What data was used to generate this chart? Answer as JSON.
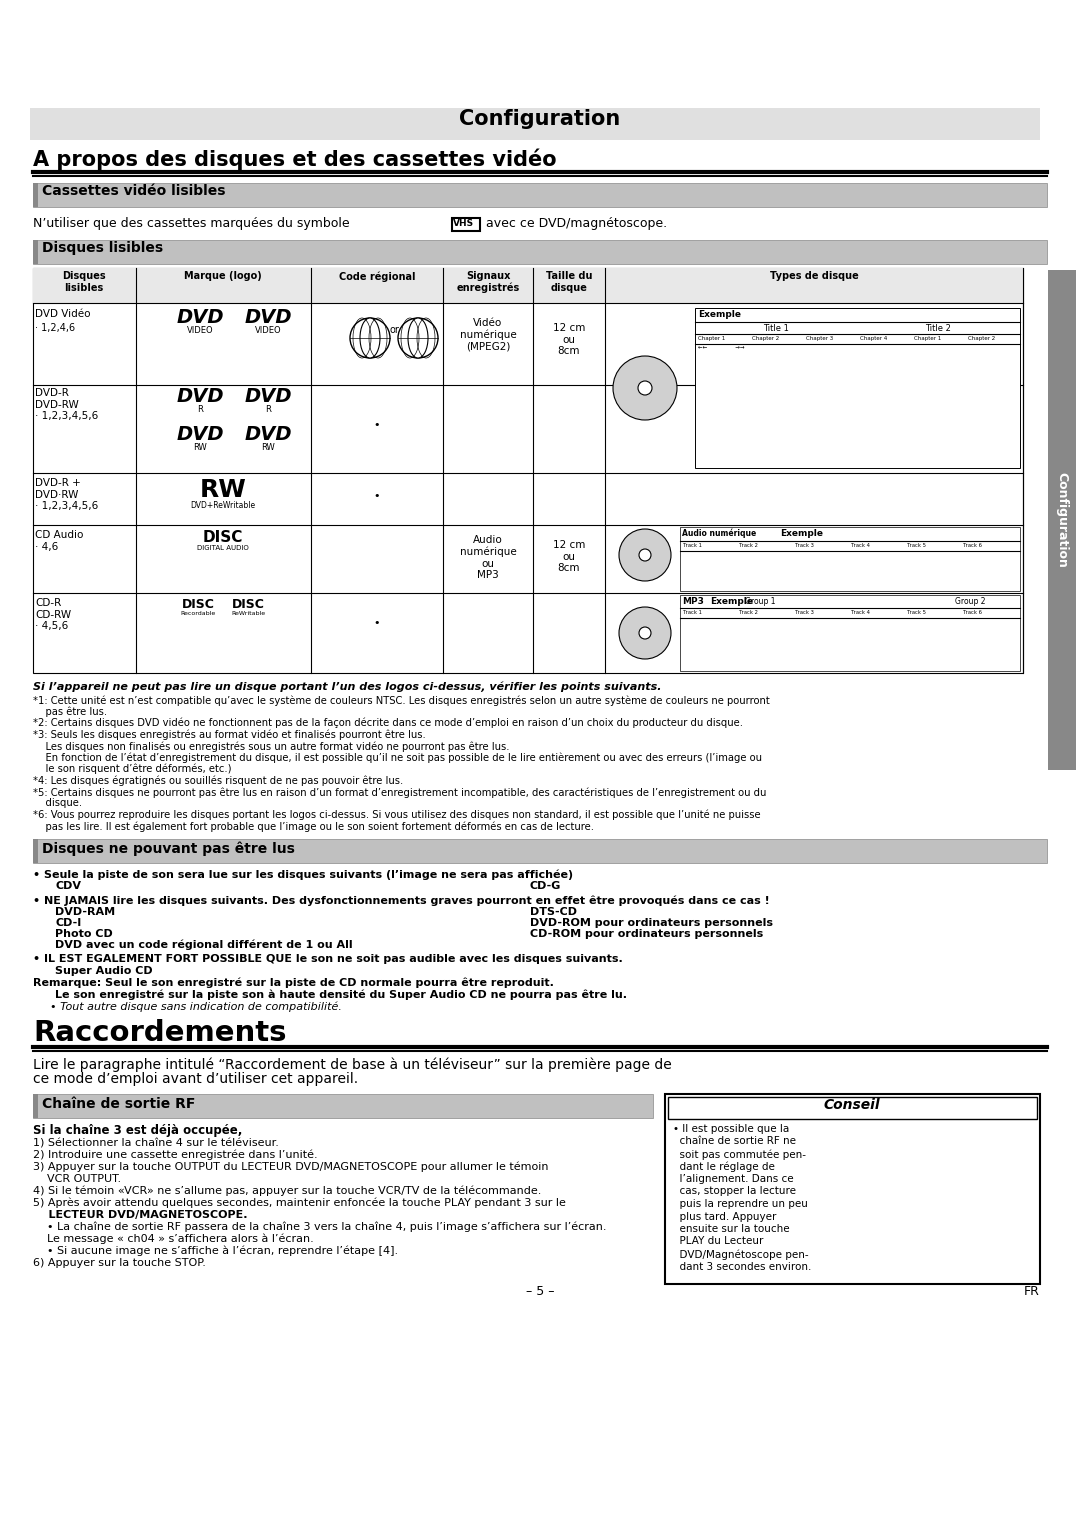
{
  "title1": "Configuration",
  "title2": "A propos des disques et des cassettes vidéo",
  "section1_header": "Cassettes vidéo lisibles",
  "section2_header": "Disques lisibles",
  "section3_header": "Disques ne pouvant pas être lus",
  "section4_header": "Raccordements",
  "section5_header": "Chaîne de sortie RF",
  "conseil_header": "Conseil",
  "bg_color": "#ffffff",
  "header_gray": "#c8c8c8",
  "table_header_gray": "#e0e0e0",
  "sidebar_color": "#888888",
  "title_bg": "#e0e0e0"
}
